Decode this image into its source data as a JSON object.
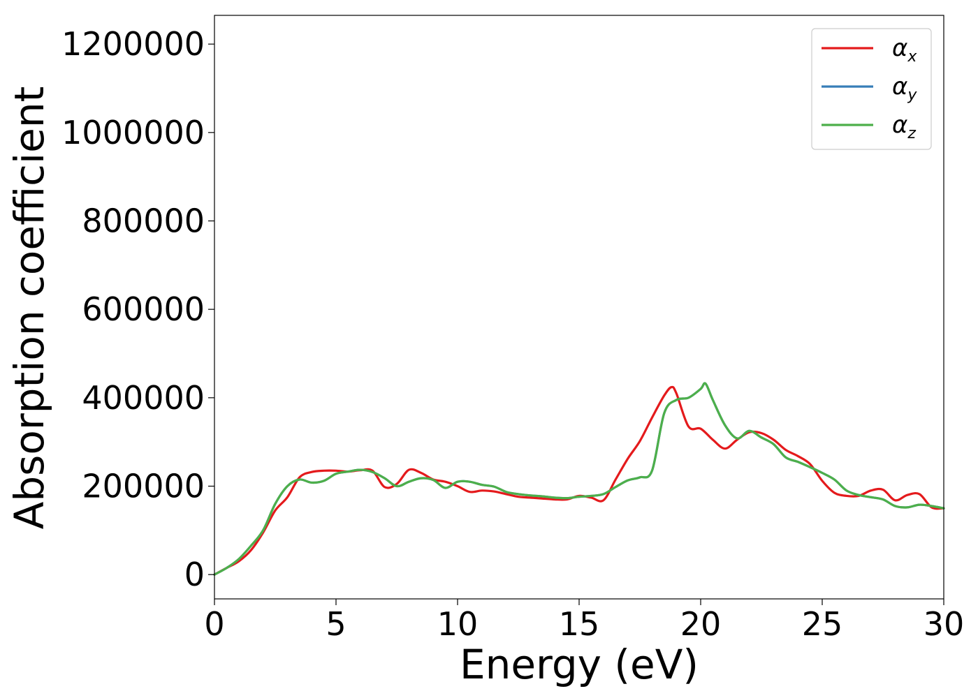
{
  "chart_data": {
    "type": "line",
    "title": "",
    "xlabel": "Energy (eV)",
    "ylabel": "Absorption coefficient",
    "xlim": [
      0,
      30
    ],
    "ylim": [
      -55000,
      1265000
    ],
    "xticks": [
      0,
      5,
      10,
      15,
      20,
      25,
      30
    ],
    "xtick_labels": [
      "0",
      "5",
      "10",
      "15",
      "20",
      "25",
      "30"
    ],
    "yticks": [
      0,
      200000,
      400000,
      600000,
      800000,
      1000000,
      1200000
    ],
    "ytick_labels": [
      "0",
      "200000",
      "400000",
      "600000",
      "800000",
      "1000000",
      "1200000"
    ],
    "grid": false,
    "legend_position": "top-right",
    "series": [
      {
        "name": "α_x",
        "legend_base": "α",
        "legend_sub": "x",
        "color": "#e41a1c",
        "x": [
          0,
          0.5,
          1.0,
          1.5,
          2.0,
          2.5,
          3.0,
          3.5,
          4.0,
          4.5,
          5.0,
          5.5,
          6.0,
          6.5,
          7.0,
          7.5,
          8.0,
          8.5,
          9.0,
          9.5,
          10.0,
          10.5,
          11.0,
          11.5,
          12.0,
          12.5,
          13.0,
          13.5,
          14.0,
          14.5,
          15.0,
          15.5,
          16.0,
          16.5,
          17.0,
          17.5,
          18.0,
          18.5,
          18.8,
          19.0,
          19.5,
          20.0,
          20.5,
          21.0,
          21.5,
          22.0,
          22.5,
          23.0,
          23.5,
          24.0,
          24.5,
          25.0,
          25.5,
          26.0,
          26.5,
          27.0,
          27.5,
          28.0,
          28.5,
          29.0,
          29.5,
          30.0
        ],
        "y": [
          0,
          15000,
          30000,
          55000,
          95000,
          145000,
          175000,
          220000,
          232000,
          235000,
          235000,
          233000,
          236000,
          235000,
          198000,
          205000,
          237000,
          230000,
          215000,
          210000,
          200000,
          187000,
          190000,
          188000,
          182000,
          176000,
          174000,
          172000,
          170000,
          170000,
          178000,
          174000,
          168000,
          215000,
          262000,
          302000,
          355000,
          405000,
          424000,
          410000,
          335000,
          330000,
          305000,
          285000,
          305000,
          322000,
          320000,
          305000,
          282000,
          268000,
          250000,
          212000,
          185000,
          178000,
          178000,
          190000,
          192000,
          168000,
          180000,
          182000,
          152000,
          150000
        ]
      },
      {
        "name": "α_y",
        "legend_base": "α",
        "legend_sub": "y",
        "color": "#377eb8",
        "x": [
          0,
          0.5,
          1.0,
          1.5,
          2.0,
          2.5,
          3.0,
          3.5,
          4.0,
          4.5,
          5.0,
          5.5,
          6.0,
          6.5,
          7.0,
          7.5,
          8.0,
          8.5,
          9.0,
          9.5,
          10.0,
          10.5,
          11.0,
          11.5,
          12.0,
          12.5,
          13.0,
          13.5,
          14.0,
          14.5,
          15.0,
          15.5,
          16.0,
          16.5,
          17.0,
          17.5,
          18.0,
          18.5,
          19.0,
          19.5,
          20.0,
          20.2,
          20.5,
          21.0,
          21.5,
          22.0,
          22.5,
          23.0,
          23.5,
          24.0,
          24.5,
          25.0,
          25.5,
          26.0,
          26.5,
          27.0,
          27.5,
          28.0,
          28.5,
          29.0,
          29.5,
          30.0
        ],
        "y": [
          0,
          15000,
          35000,
          65000,
          100000,
          160000,
          200000,
          215000,
          208000,
          212000,
          228000,
          233000,
          237000,
          232000,
          218000,
          200000,
          210000,
          218000,
          214000,
          196000,
          210000,
          210000,
          203000,
          199000,
          187000,
          182000,
          179000,
          177000,
          174000,
          173000,
          176000,
          178000,
          182000,
          198000,
          213000,
          220000,
          235000,
          365000,
          395000,
          400000,
          420000,
          432000,
          395000,
          338000,
          308000,
          325000,
          310000,
          295000,
          265000,
          255000,
          243000,
          230000,
          215000,
          190000,
          180000,
          175000,
          170000,
          155000,
          152000,
          158000,
          155000,
          150000
        ]
      },
      {
        "name": "α_z",
        "legend_base": "α",
        "legend_sub": "z",
        "color": "#4daf4a",
        "x": [
          0,
          0.5,
          1.0,
          1.5,
          2.0,
          2.5,
          3.0,
          3.5,
          4.0,
          4.5,
          5.0,
          5.5,
          6.0,
          6.5,
          7.0,
          7.5,
          8.0,
          8.5,
          9.0,
          9.5,
          10.0,
          10.5,
          11.0,
          11.5,
          12.0,
          12.5,
          13.0,
          13.5,
          14.0,
          14.5,
          15.0,
          15.5,
          16.0,
          16.5,
          17.0,
          17.5,
          18.0,
          18.5,
          19.0,
          19.5,
          20.0,
          20.2,
          20.5,
          21.0,
          21.5,
          22.0,
          22.5,
          23.0,
          23.5,
          24.0,
          24.5,
          25.0,
          25.5,
          26.0,
          26.5,
          27.0,
          27.5,
          28.0,
          28.5,
          29.0,
          29.5,
          30.0
        ],
        "y": [
          0,
          15000,
          35000,
          65000,
          100000,
          160000,
          200000,
          215000,
          208000,
          212000,
          228000,
          233000,
          237000,
          232000,
          218000,
          200000,
          210000,
          218000,
          214000,
          196000,
          210000,
          210000,
          203000,
          199000,
          187000,
          182000,
          179000,
          177000,
          174000,
          173000,
          176000,
          178000,
          182000,
          198000,
          213000,
          220000,
          235000,
          365000,
          395000,
          400000,
          420000,
          432000,
          395000,
          338000,
          308000,
          325000,
          310000,
          295000,
          265000,
          255000,
          243000,
          230000,
          215000,
          190000,
          180000,
          175000,
          170000,
          155000,
          152000,
          158000,
          155000,
          150000
        ]
      }
    ]
  }
}
